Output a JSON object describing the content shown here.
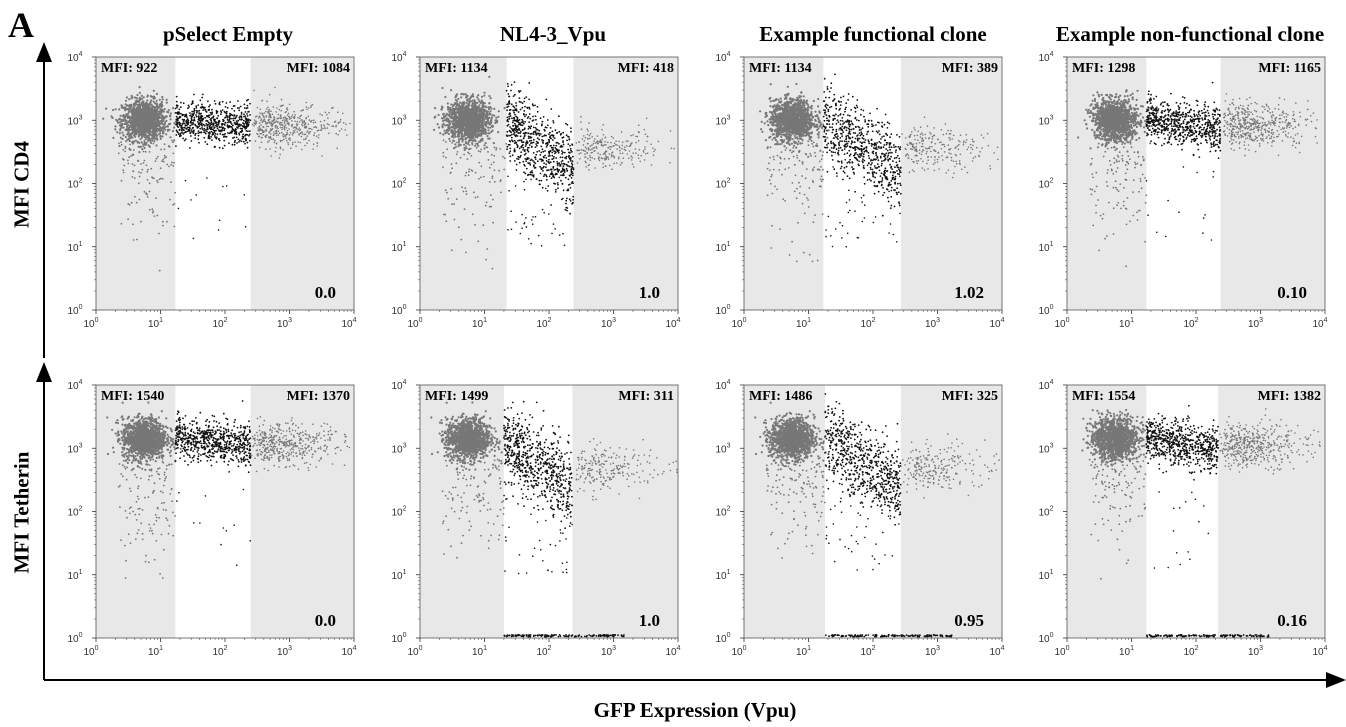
{
  "figure": {
    "panel_letter": "A",
    "columns": [
      "pSelect Empty",
      "NL4-3_Vpu",
      "Example functional clone",
      "Example non-functional clone"
    ],
    "rows": [
      "MFI CD4",
      "MFI Tetherin"
    ],
    "x_axis_label": "GFP Expression (Vpu)",
    "colors": {
      "shade": "#e8e8e8",
      "dots_dark": "#111111",
      "dots_grey": "#777777",
      "frame": "#555555"
    }
  },
  "chart_data": [
    {
      "type": "scatter",
      "row": "MFI CD4",
      "column": "pSelect Empty",
      "mfi_left": "MFI:  922",
      "mfi_right": "MFI:  1084",
      "score": "0.0",
      "gate": [
        17,
        250
      ],
      "x_range": [
        1,
        10000
      ],
      "y_range": [
        1,
        10000
      ],
      "log_scale": true,
      "right_tail": 0.85,
      "low_density": 0.1,
      "bottom_line": false
    },
    {
      "type": "scatter",
      "row": "MFI CD4",
      "column": "NL4-3_Vpu",
      "mfi_left": "MFI:  1134",
      "mfi_right": "MFI:  418",
      "score": "1.0",
      "gate": [
        22,
        240
      ],
      "x_range": [
        1,
        10000
      ],
      "y_range": [
        1,
        10000
      ],
      "log_scale": true,
      "right_tail": 0.25,
      "low_density": 0.9,
      "bottom_line": false
    },
    {
      "type": "scatter",
      "row": "MFI CD4",
      "column": "Example functional clone",
      "mfi_left": "MFI:  1134",
      "mfi_right": "MFI:  389",
      "score": "1.02",
      "gate": [
        17,
        270
      ],
      "x_range": [
        1,
        10000
      ],
      "y_range": [
        1,
        10000
      ],
      "log_scale": true,
      "right_tail": 0.22,
      "low_density": 0.9,
      "bottom_line": false
    },
    {
      "type": "scatter",
      "row": "MFI CD4",
      "column": "Example non-functional clone",
      "mfi_left": "MFI:  1298",
      "mfi_right": "MFI:  1165",
      "score": "0.10",
      "gate": [
        17,
        240
      ],
      "x_range": [
        1,
        10000
      ],
      "y_range": [
        1,
        10000
      ],
      "log_scale": true,
      "right_tail": 0.9,
      "low_density": 0.15,
      "bottom_line": false
    },
    {
      "type": "scatter",
      "row": "MFI Tetherin",
      "column": "pSelect Empty",
      "mfi_left": "MFI:  1540",
      "mfi_right": "MFI:  1370",
      "score": "0.0",
      "gate": [
        17,
        250
      ],
      "x_range": [
        1,
        10000
      ],
      "y_range": [
        1,
        10000
      ],
      "log_scale": true,
      "right_tail": 0.85,
      "low_density": 0.1,
      "bottom_line": false
    },
    {
      "type": "scatter",
      "row": "MFI Tetherin",
      "column": "NL4-3_Vpu",
      "mfi_left": "MFI:  1499",
      "mfi_right": "MFI:  311",
      "score": "1.0",
      "gate": [
        20,
        230
      ],
      "x_range": [
        1,
        10000
      ],
      "y_range": [
        1,
        10000
      ],
      "log_scale": true,
      "right_tail": 0.2,
      "low_density": 0.9,
      "bottom_line": true
    },
    {
      "type": "scatter",
      "row": "MFI Tetherin",
      "column": "Example functional clone",
      "mfi_left": "MFI:  1486",
      "mfi_right": "MFI:  325",
      "score": "0.95",
      "gate": [
        18,
        270
      ],
      "x_range": [
        1,
        10000
      ],
      "y_range": [
        1,
        10000
      ],
      "log_scale": true,
      "right_tail": 0.22,
      "low_density": 0.85,
      "bottom_line": true
    },
    {
      "type": "scatter",
      "row": "MFI Tetherin",
      "column": "Example non-functional clone",
      "mfi_left": "MFI:  1554",
      "mfi_right": "MFI:  1382",
      "score": "0.16",
      "gate": [
        17,
        220
      ],
      "x_range": [
        1,
        10000
      ],
      "y_range": [
        1,
        10000
      ],
      "log_scale": true,
      "right_tail": 0.85,
      "low_density": 0.2,
      "bottom_line": true
    }
  ]
}
